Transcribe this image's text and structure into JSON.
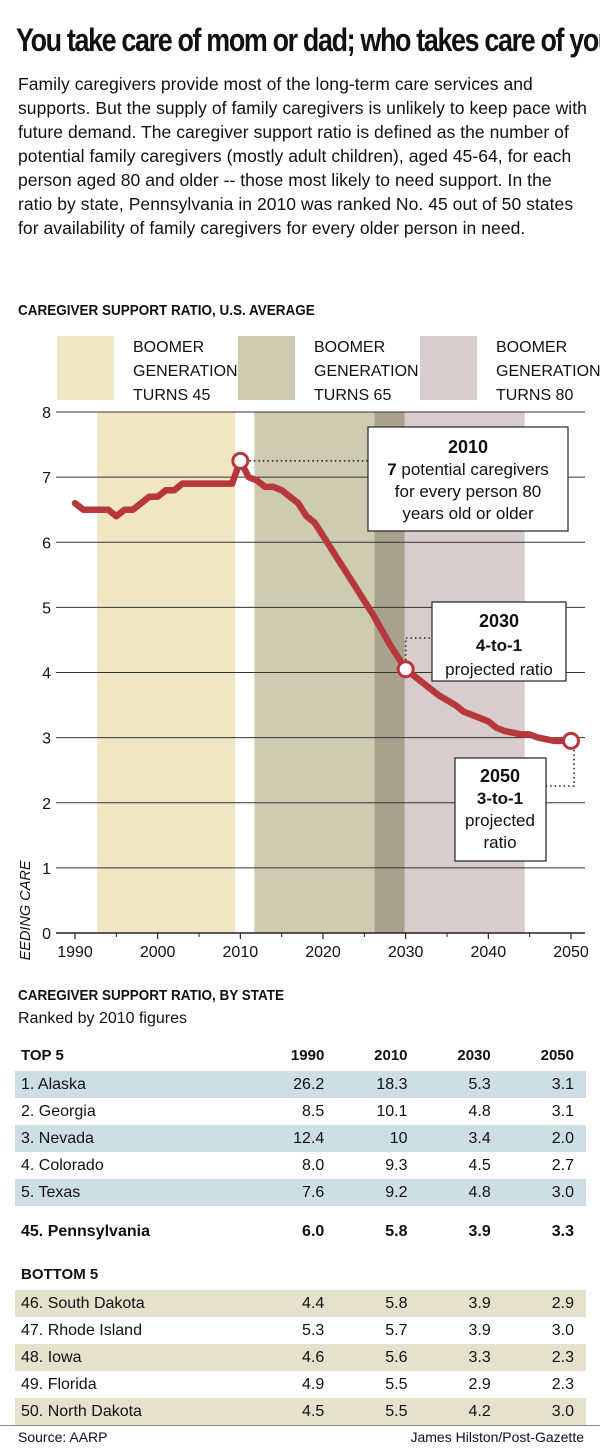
{
  "title": "You take care of mom or dad; who takes care of you?",
  "intro": "Family caregivers provide most of the long-term care services and supports. But the supply of family caregivers is unlikely to keep pace with future demand. The caregiver support ratio is defined as the number of potential family caregivers (mostly adult children), aged 45-64, for each person aged 80 and older -- those most likely to need support. In the ratio by state, Pennsylvania in 2010 was ranked No. 45 out of 50 states for availability of family caregivers for every older person in need.",
  "legend": [
    {
      "label": "BOOMER GENERATION TURNS 45",
      "color": "#f0e6c3"
    },
    {
      "label": "BOOMER GENERATION TURNS 65",
      "color": "#cdcbb0"
    },
    {
      "label": "BOOMER GENERATION TURNS 80",
      "color": "#d9cccd"
    }
  ],
  "chart_data": {
    "type": "line",
    "title": "CAREGIVER SUPPORT RATIO, U.S. AVERAGE",
    "xlabel": "",
    "ylabel": "NUMBER OF CAREGIVERS PER PERSONS NEEDING CARE",
    "xlim": [
      1990,
      2050
    ],
    "ylim": [
      0,
      8
    ],
    "xticks": [
      1990,
      2000,
      2010,
      2020,
      2030,
      2040,
      2050
    ],
    "yticks": [
      0,
      1,
      2,
      3,
      4,
      5,
      6,
      7,
      8
    ],
    "grid": true,
    "line_color": "#b8373d",
    "series": [
      {
        "name": "Caregiver support ratio",
        "x": [
          1990,
          1991,
          1992,
          1993,
          1994,
          1995,
          1996,
          1997,
          1998,
          1999,
          2000,
          2001,
          2002,
          2003,
          2004,
          2005,
          2006,
          2007,
          2008,
          2009,
          2010,
          2011,
          2012,
          2013,
          2014,
          2015,
          2016,
          2017,
          2018,
          2019,
          2020,
          2022,
          2024,
          2025,
          2026,
          2028,
          2030,
          2032,
          2034,
          2036,
          2037,
          2038,
          2040,
          2041,
          2042,
          2044,
          2045,
          2046,
          2048,
          2050
        ],
        "values": [
          6.6,
          6.5,
          6.5,
          6.5,
          6.5,
          6.4,
          6.5,
          6.5,
          6.6,
          6.7,
          6.7,
          6.8,
          6.8,
          6.9,
          6.9,
          6.9,
          6.9,
          6.9,
          6.9,
          6.9,
          7.25,
          7.0,
          6.95,
          6.85,
          6.85,
          6.8,
          6.7,
          6.6,
          6.4,
          6.3,
          6.1,
          5.7,
          5.3,
          5.1,
          4.9,
          4.45,
          4.05,
          3.85,
          3.65,
          3.5,
          3.4,
          3.35,
          3.25,
          3.15,
          3.1,
          3.05,
          3.05,
          3.0,
          2.95,
          2.95
        ]
      }
    ],
    "bands": [
      {
        "name": "BOOMER GENERATION TURNS 45",
        "x": [
          1992.7,
          2009.4
        ],
        "color": "#f0e6c3"
      },
      {
        "name": "BOOMER GENERATION TURNS 65",
        "x": [
          2011.7,
          2026.2
        ],
        "color": "#cdcbb0"
      },
      {
        "name": "BOOMER GENERATION TURNS 65 / 80 overlap",
        "x": [
          2026.2,
          2029.9
        ],
        "color": "#a8a28c"
      },
      {
        "name": "BOOMER GENERATION TURNS 80",
        "x": [
          2029.9,
          2044.4
        ],
        "color": "#d9cccd"
      }
    ],
    "highlights": [
      {
        "x": 2010,
        "y": 7.25
      },
      {
        "x": 2030,
        "y": 4.05
      },
      {
        "x": 2050,
        "y": 2.95
      }
    ],
    "annotations": [
      {
        "year": "2010",
        "lines": [
          "7 potential caregivers",
          "for every person 80",
          "years old or older"
        ]
      },
      {
        "year": "2030",
        "lines": [
          "4-to-1",
          "projected ratio"
        ]
      },
      {
        "year": "2050",
        "lines": [
          "3-to-1",
          "projected",
          "ratio"
        ]
      }
    ]
  },
  "state_section": {
    "title": "CAREGIVER SUPPORT RATIO, BY STATE",
    "subtitle": "Ranked by 2010 figures",
    "columns": [
      "1990",
      "2010",
      "2030",
      "2050"
    ],
    "top_label": "TOP 5",
    "top": [
      {
        "state": "1. Alaska",
        "values": [
          "26.2",
          "18.3",
          "5.3",
          "3.1"
        ]
      },
      {
        "state": "2. Georgia",
        "values": [
          "8.5",
          "10.1",
          "4.8",
          "3.1"
        ]
      },
      {
        "state": "3. Nevada",
        "values": [
          "12.4",
          "10",
          "3.4",
          "2.0"
        ]
      },
      {
        "state": "4. Colorado",
        "values": [
          "8.0",
          "9.3",
          "4.5",
          "2.7"
        ]
      },
      {
        "state": "5. Texas",
        "values": [
          "7.6",
          "9.2",
          "4.8",
          "3.0"
        ]
      }
    ],
    "featured": {
      "state": "45. Pennsylvania",
      "values": [
        "6.0",
        "5.8",
        "3.9",
        "3.3"
      ]
    },
    "bottom_label": "BOTTOM 5",
    "bottom": [
      {
        "state": "46. South Dakota",
        "values": [
          "4.4",
          "5.8",
          "3.9",
          "2.9"
        ]
      },
      {
        "state": "47. Rhode Island",
        "values": [
          "5.3",
          "5.7",
          "3.9",
          "3.0"
        ]
      },
      {
        "state": "48. Iowa",
        "values": [
          "4.6",
          "5.6",
          "3.3",
          "2.3"
        ]
      },
      {
        "state": "49. Florida",
        "values": [
          "4.9",
          "5.5",
          "2.9",
          "2.3"
        ]
      },
      {
        "state": "50. North Dakota",
        "values": [
          "4.5",
          "5.5",
          "4.2",
          "3.0"
        ]
      }
    ]
  },
  "footer": {
    "source": "Source: AARP",
    "credit": "James Hilston/Post-Gazette"
  }
}
